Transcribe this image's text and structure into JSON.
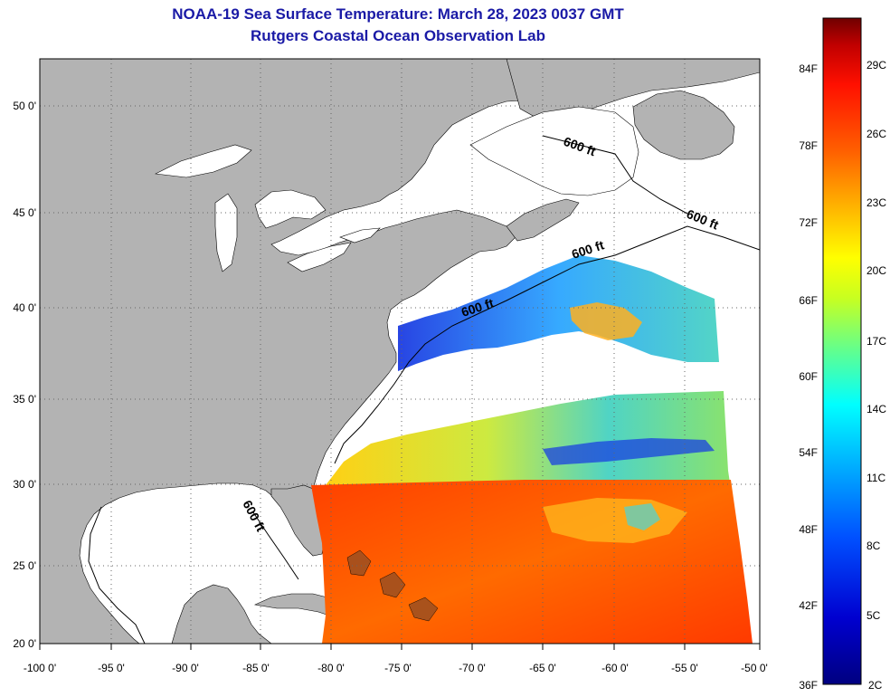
{
  "title": "NOAA-19 Sea Surface Temperature:  March 28, 2023 0037 GMT",
  "subtitle": "Rutgers Coastal Ocean Observation Lab",
  "map": {
    "lon_labels": [
      "-100 0'",
      "-95 0'",
      "-90 0'",
      "-85 0'",
      "-80 0'",
      "-75 0'",
      "-70 0'",
      "-65 0'",
      "-60 0'",
      "-55 0'",
      "-50 0'"
    ],
    "lat_labels": [
      "50 0'",
      "45 0'",
      "40 0'",
      "35 0'",
      "30 0'",
      "25 0'",
      "20 0'"
    ],
    "contour_label": "600 ft",
    "colors": {
      "land": "#b3b3b3",
      "no_data": "#ffffff",
      "grid": "#666666"
    }
  },
  "colorbar": {
    "fahrenheit": [
      "84F",
      "78F",
      "72F",
      "66F",
      "60F",
      "54F",
      "48F",
      "42F",
      "36F"
    ],
    "celsius": [
      "29C",
      "26C",
      "23C",
      "20C",
      "17C",
      "14C",
      "11C",
      "8C",
      "5C",
      "2C"
    ],
    "colors": [
      "#7a0000",
      "#c80000",
      "#ff2000",
      "#ff8000",
      "#ffd000",
      "#ffff00",
      "#a0ff40",
      "#40ffa0",
      "#00ffff",
      "#00a0ff",
      "#0040ff",
      "#0000c0",
      "#000080"
    ]
  }
}
